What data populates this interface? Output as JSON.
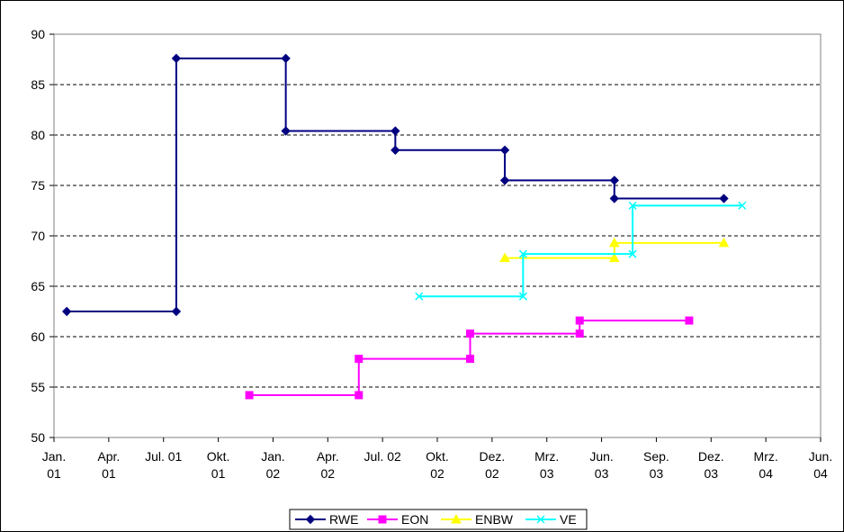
{
  "chart_data": {
    "type": "line",
    "step": true,
    "title": "",
    "xlabel": "",
    "ylabel": "",
    "ylim": [
      50,
      90
    ],
    "yticks": [
      50,
      55,
      60,
      65,
      70,
      75,
      80,
      85,
      90
    ],
    "grid": "horizontal dashed",
    "legend_position": "bottom",
    "xticks": [
      {
        "pos": 0,
        "line1": "Jan.",
        "line2": "01"
      },
      {
        "pos": 3,
        "line1": "Apr.",
        "line2": "01"
      },
      {
        "pos": 6,
        "line1": "Jul. 01",
        "line2": ""
      },
      {
        "pos": 9,
        "line1": "Okt.",
        "line2": "01"
      },
      {
        "pos": 12,
        "line1": "Jan.",
        "line2": "02"
      },
      {
        "pos": 15,
        "line1": "Apr.",
        "line2": "02"
      },
      {
        "pos": 18,
        "line1": "Jul. 02",
        "line2": ""
      },
      {
        "pos": 21,
        "line1": "Okt.",
        "line2": "02"
      },
      {
        "pos": 24,
        "line1": "Dez.",
        "line2": "02"
      },
      {
        "pos": 27,
        "line1": "Mrz.",
        "line2": "03"
      },
      {
        "pos": 30,
        "line1": "Jun.",
        "line2": "03"
      },
      {
        "pos": 33,
        "line1": "Sep.",
        "line2": "03"
      },
      {
        "pos": 36,
        "line1": "Dez.",
        "line2": "03"
      },
      {
        "pos": 39,
        "line1": "Mrz.",
        "line2": "04"
      },
      {
        "pos": 42,
        "line1": "Jun.",
        "line2": "04"
      }
    ],
    "series": [
      {
        "name": "RWE",
        "color": "#000080",
        "marker": "diamond",
        "points": [
          {
            "x": 0.7,
            "y": 62.5
          },
          {
            "x": 6.7,
            "y": 62.5
          },
          {
            "x": 6.7,
            "y": 87.6
          },
          {
            "x": 12.7,
            "y": 87.6
          },
          {
            "x": 12.7,
            "y": 80.4
          },
          {
            "x": 18.7,
            "y": 80.4
          },
          {
            "x": 18.7,
            "y": 78.5
          },
          {
            "x": 24.7,
            "y": 78.5
          },
          {
            "x": 24.7,
            "y": 75.5
          },
          {
            "x": 30.7,
            "y": 75.5
          },
          {
            "x": 30.7,
            "y": 73.7
          },
          {
            "x": 36.7,
            "y": 73.7
          }
        ]
      },
      {
        "name": "EON",
        "color": "#FF00FF",
        "marker": "square",
        "points": [
          {
            "x": 10.7,
            "y": 54.2
          },
          {
            "x": 16.7,
            "y": 54.2
          },
          {
            "x": 16.7,
            "y": 57.8
          },
          {
            "x": 22.8,
            "y": 57.8
          },
          {
            "x": 22.8,
            "y": 60.3
          },
          {
            "x": 28.8,
            "y": 60.3
          },
          {
            "x": 28.8,
            "y": 61.6
          },
          {
            "x": 34.8,
            "y": 61.6
          }
        ]
      },
      {
        "name": "ENBW",
        "color": "#FFFF00",
        "marker": "triangle",
        "points": [
          {
            "x": 24.7,
            "y": 67.8
          },
          {
            "x": 30.7,
            "y": 67.8
          },
          {
            "x": 30.7,
            "y": 69.3
          },
          {
            "x": 36.7,
            "y": 69.3
          }
        ]
      },
      {
        "name": "VE",
        "color": "#00FFFF",
        "marker": "x",
        "points": [
          {
            "x": 20.0,
            "y": 64.0
          },
          {
            "x": 25.7,
            "y": 64.0
          },
          {
            "x": 25.7,
            "y": 68.2
          },
          {
            "x": 31.7,
            "y": 68.2
          },
          {
            "x": 31.7,
            "y": 73.0
          },
          {
            "x": 37.7,
            "y": 73.0
          }
        ]
      }
    ]
  }
}
